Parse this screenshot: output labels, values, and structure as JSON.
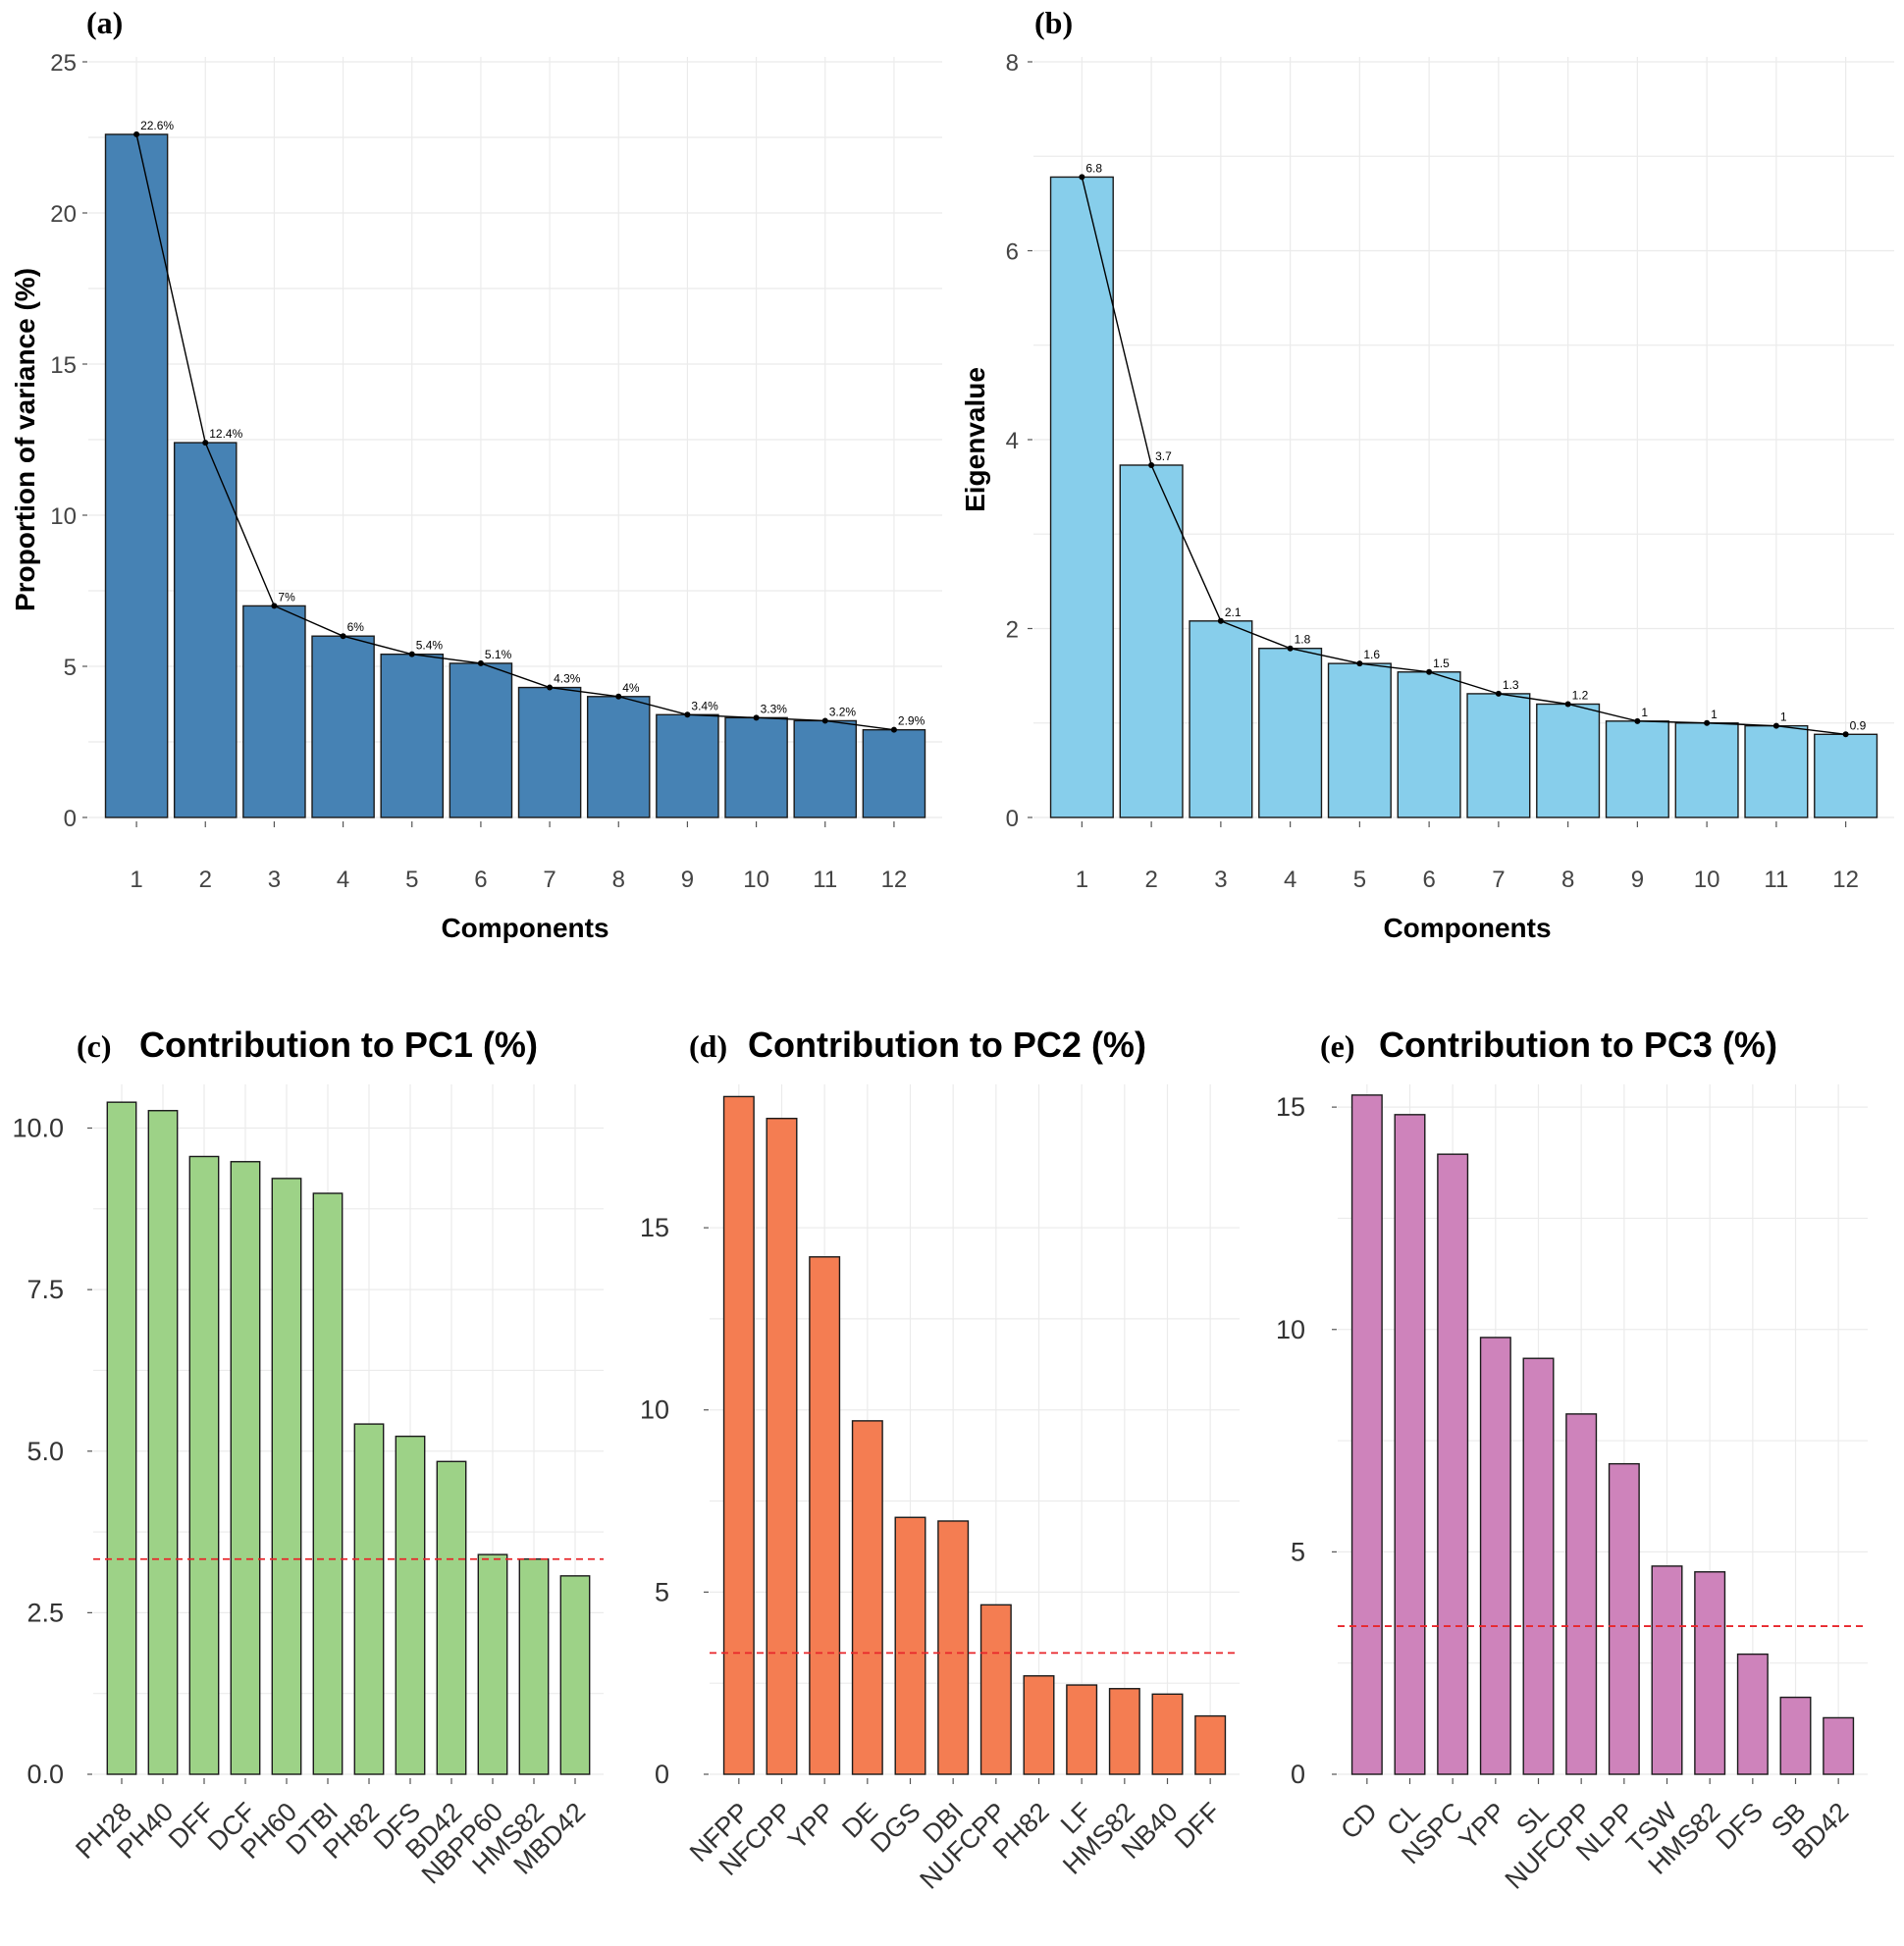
{
  "colors": {
    "a": "#4682B4",
    "b": "#87CEEB",
    "c": "#9DD287",
    "d": "#F47D52",
    "e": "#CE83BB",
    "ref": "#E8262B"
  },
  "chart_data": [
    {
      "panel": "(a)",
      "type": "bar",
      "title": "",
      "xlabel": "Components",
      "ylabel": "Proportion of variance (%)",
      "categories": [
        "1",
        "2",
        "3",
        "4",
        "5",
        "6",
        "7",
        "8",
        "9",
        "10",
        "11",
        "12"
      ],
      "values": [
        22.6,
        12.4,
        7.0,
        6.0,
        5.4,
        5.1,
        4.3,
        4.0,
        3.4,
        3.3,
        3.2,
        2.9
      ],
      "value_labels": [
        "22.6%",
        "12.4%",
        "7%",
        "6%",
        "5.4%",
        "5.1%",
        "4.3%",
        "4%",
        "3.4%",
        "3.3%",
        "3.2%",
        "2.9%"
      ],
      "yticks": [
        0,
        5,
        10,
        15,
        20,
        25
      ],
      "ytick_labels": [
        "0",
        "5",
        "10",
        "15",
        "20",
        "25"
      ],
      "ylim": [
        0,
        25
      ],
      "line_overlay": true
    },
    {
      "panel": "(b)",
      "type": "bar",
      "title": "",
      "xlabel": "Components",
      "ylabel": "Eigenvalue",
      "categories": [
        "1",
        "2",
        "3",
        "4",
        "5",
        "6",
        "7",
        "8",
        "9",
        "10",
        "11",
        "12"
      ],
      "values": [
        6.78,
        3.73,
        2.08,
        1.79,
        1.63,
        1.54,
        1.31,
        1.2,
        1.02,
        1.0,
        0.97,
        0.88
      ],
      "value_labels": [
        "6.8",
        "3.7",
        "2.1",
        "1.8",
        "1.6",
        "1.5",
        "1.3",
        "1.2",
        "1",
        "1",
        "1",
        "0.9"
      ],
      "yticks": [
        0,
        2,
        4,
        6,
        8
      ],
      "ytick_labels": [
        "0",
        "2",
        "4",
        "6",
        "8"
      ],
      "ylim": [
        0,
        8
      ],
      "line_overlay": true
    },
    {
      "panel": "(c)",
      "type": "bar",
      "title": "Contribution to PC1 (%)",
      "xlabel": "",
      "ylabel": "",
      "categories": [
        "PH28",
        "PH40",
        "DFF",
        "DCF",
        "PH60",
        "DTBI",
        "PH82",
        "DFS",
        "BD42",
        "NBPP60",
        "HMS82",
        "MBD42"
      ],
      "values": [
        10.4,
        10.27,
        9.56,
        9.48,
        9.22,
        8.99,
        5.42,
        5.23,
        4.84,
        3.4,
        3.33,
        3.07
      ],
      "yticks": [
        0,
        2.5,
        5,
        7.5,
        10
      ],
      "ytick_labels": [
        "0.0",
        "2.5",
        "5.0",
        "7.5",
        "10.0"
      ],
      "ylim": [
        0,
        10.6
      ],
      "reference_line": 3.33
    },
    {
      "panel": "(d)",
      "type": "bar",
      "title": "Contribution to PC2 (%)",
      "xlabel": "",
      "ylabel": "",
      "categories": [
        "NFPP",
        "NFCPP",
        "YPP",
        "DE",
        "DGS",
        "DBI",
        "NUFCPP",
        "PH82",
        "LF",
        "HMS82",
        "NB40",
        "DFF"
      ],
      "values": [
        18.6,
        18.0,
        14.2,
        9.7,
        7.05,
        6.95,
        4.65,
        2.7,
        2.45,
        2.35,
        2.2,
        1.6
      ],
      "yticks": [
        0,
        5,
        10,
        15
      ],
      "ytick_labels": [
        "0",
        "5",
        "10",
        "15"
      ],
      "ylim": [
        0,
        18.8
      ],
      "reference_line": 3.33
    },
    {
      "panel": "(e)",
      "type": "bar",
      "title": "Contribution to PC3 (%)",
      "xlabel": "",
      "ylabel": "",
      "categories": [
        "CD",
        "CL",
        "NSPC",
        "YPP",
        "SL",
        "NUFCPP",
        "NLPP",
        "TSW",
        "HMS82",
        "DFS",
        "SB",
        "BD42"
      ],
      "values": [
        15.27,
        14.83,
        13.94,
        9.82,
        9.35,
        8.1,
        6.98,
        4.68,
        4.55,
        2.7,
        1.73,
        1.27
      ],
      "yticks": [
        0,
        5,
        10,
        15
      ],
      "ytick_labels": [
        "0",
        "5",
        "10",
        "15"
      ],
      "ylim": [
        0,
        15.4
      ],
      "reference_line": 3.33
    }
  ]
}
